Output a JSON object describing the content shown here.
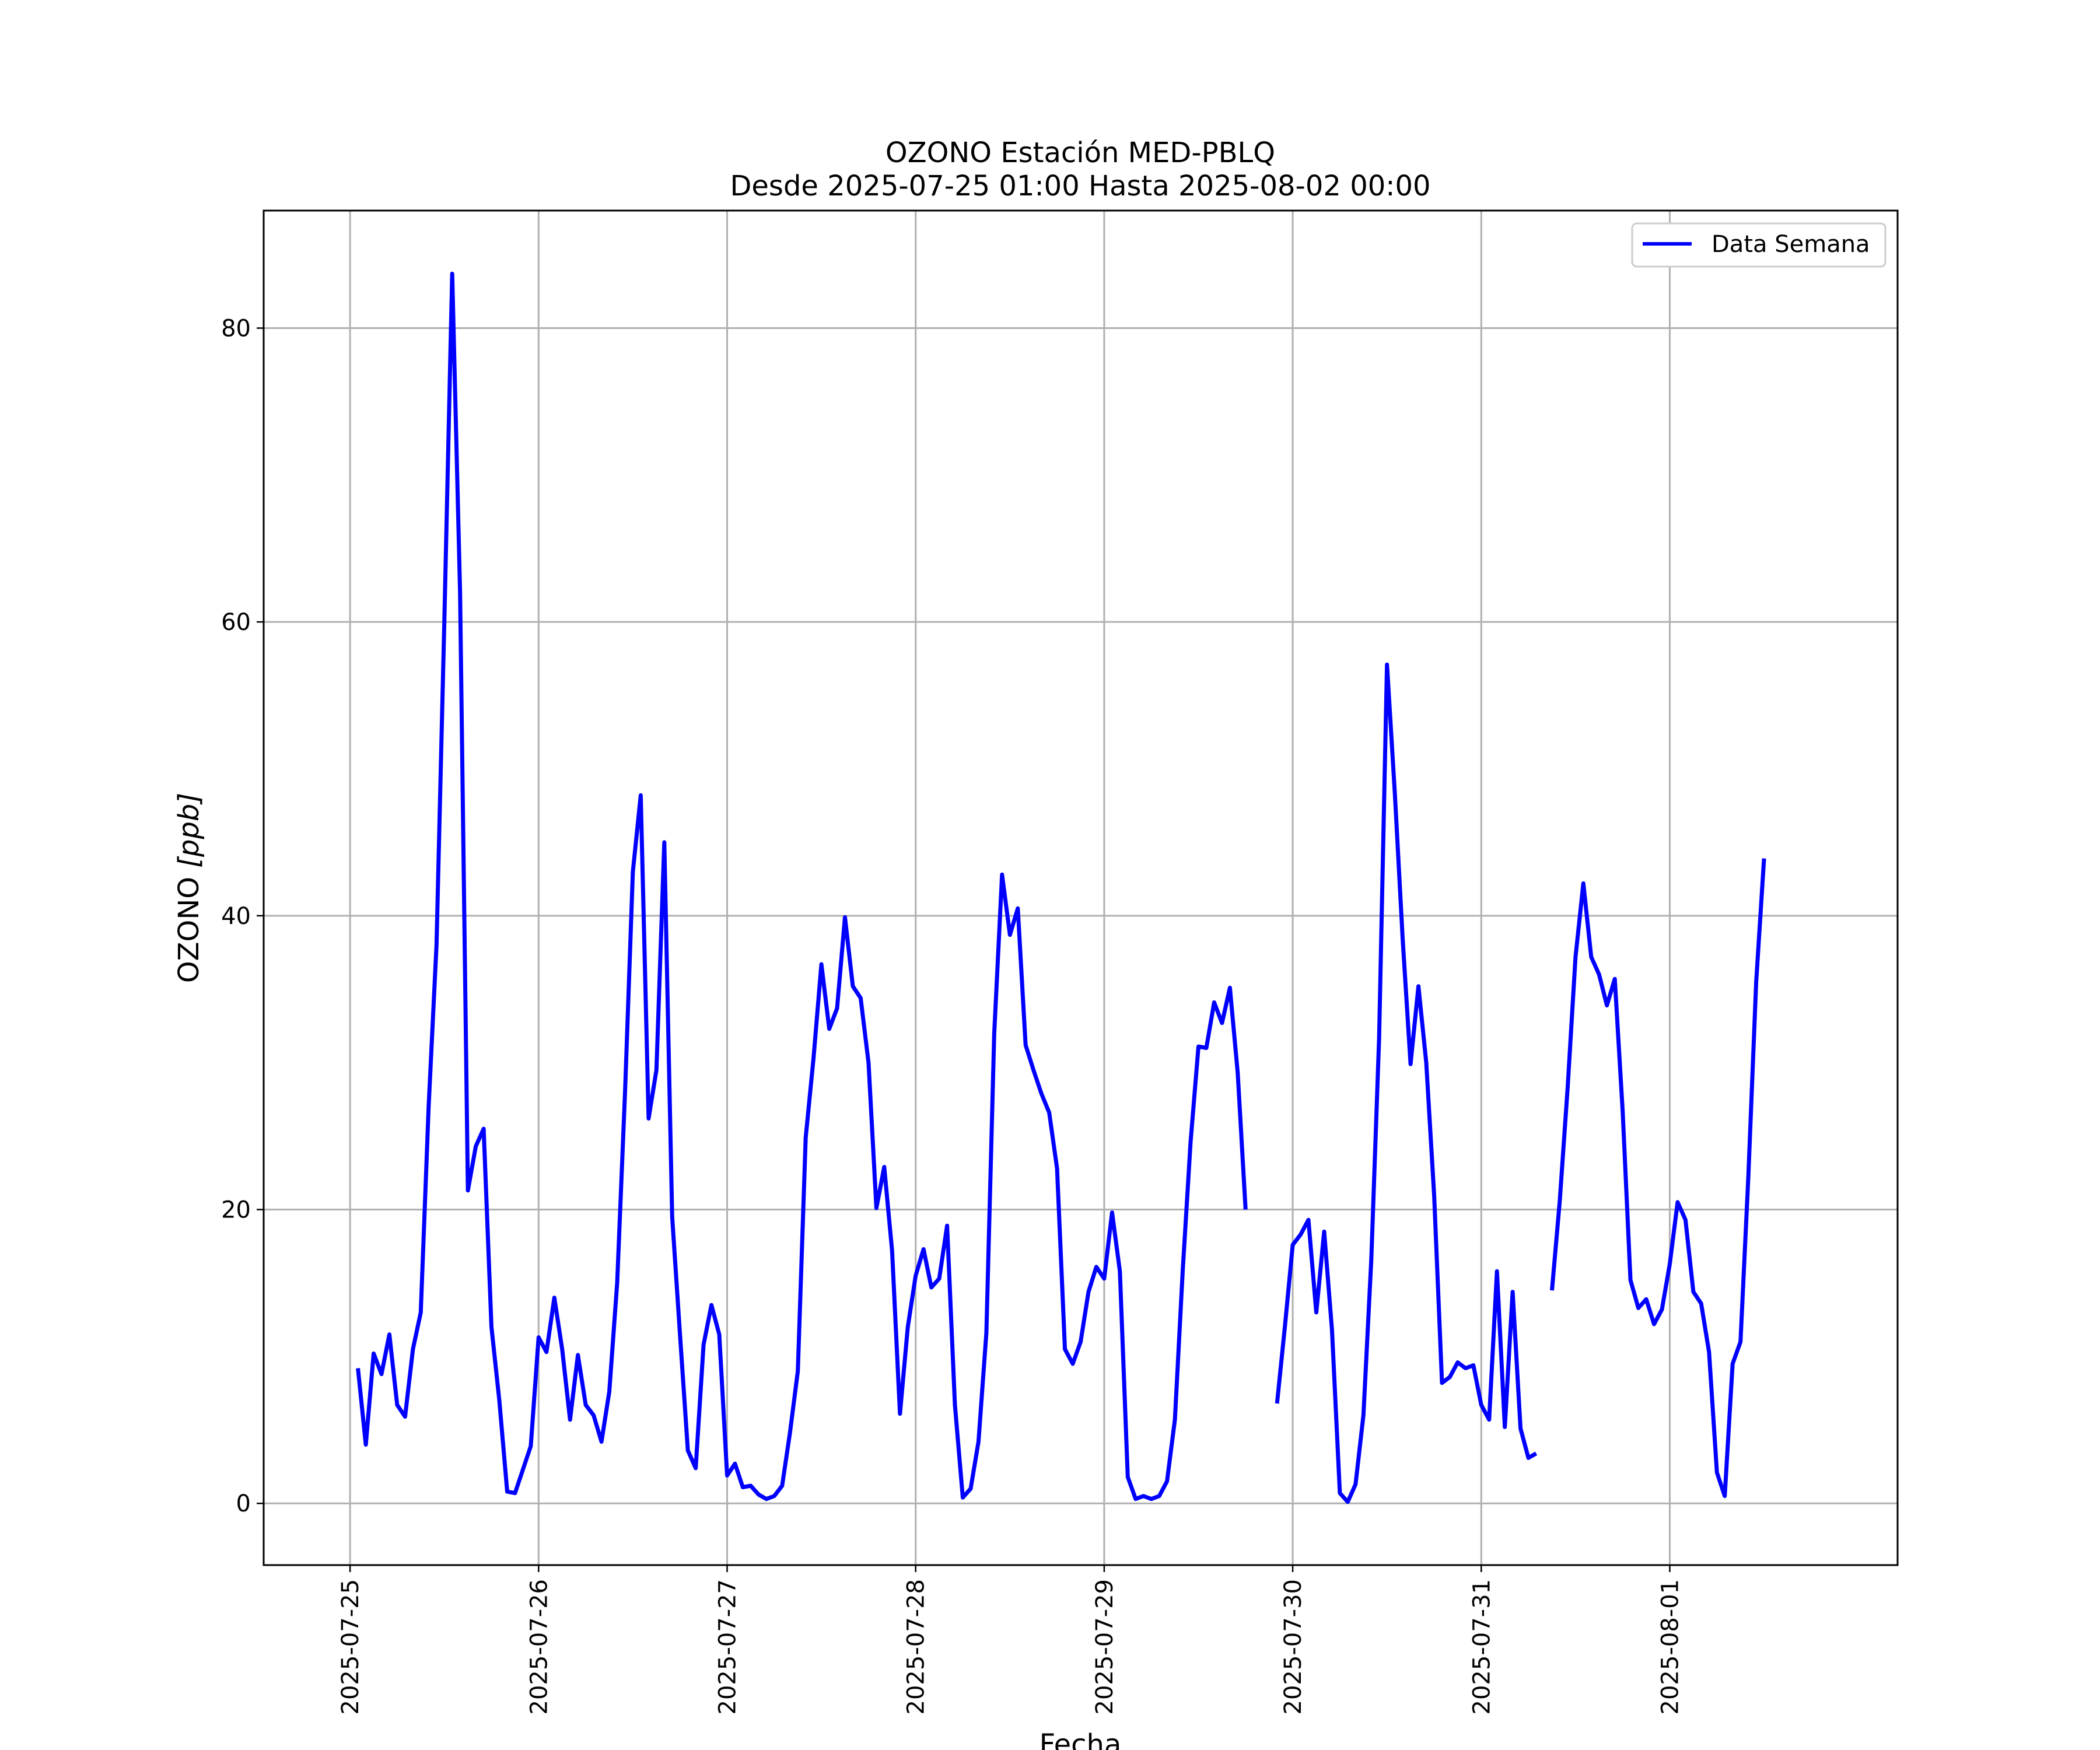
{
  "chart_data": {
    "type": "line",
    "title": "OZONO Estación MED-PBLQ",
    "subtitle": "Desde 2025-07-25 01:00 Hasta 2025-08-02 00:00",
    "xlabel": "Fecha",
    "ylabel_prefix": "OZONO ",
    "ylabel_unit": "[ppb]",
    "x_tick_labels": [
      "2025-07-25",
      "2025-07-26",
      "2025-07-27",
      "2025-07-28",
      "2025-07-29",
      "2025-07-30",
      "2025-07-31",
      "2025-08-01"
    ],
    "y_ticks": [
      0,
      20,
      40,
      60,
      80
    ],
    "ylim": [
      -4.2,
      88
    ],
    "xlim": [
      "2025-07-24 13:00",
      "2025-08-02 05:00"
    ],
    "grid": true,
    "legend_position": "top-right",
    "series": [
      {
        "name": "Data Semana",
        "color": "#0000ff",
        "points": [
          [
            "2025-07-25 01:00",
            9.2
          ],
          [
            "2025-07-25 02:00",
            4.0
          ],
          [
            "2025-07-25 03:00",
            10.2
          ],
          [
            "2025-07-25 04:00",
            8.8
          ],
          [
            "2025-07-25 05:00",
            11.5
          ],
          [
            "2025-07-25 06:00",
            6.7
          ],
          [
            "2025-07-25 07:00",
            5.9
          ],
          [
            "2025-07-25 08:00",
            10.5
          ],
          [
            "2025-07-25 09:00",
            13.0
          ],
          [
            "2025-07-25 10:00",
            27.0
          ],
          [
            "2025-07-25 11:00",
            38.0
          ],
          [
            "2025-07-25 12:00",
            60.0
          ],
          [
            "2025-07-25 13:00",
            83.7
          ],
          [
            "2025-07-25 14:00",
            62.0
          ],
          [
            "2025-07-25 15:00",
            21.3
          ],
          [
            "2025-07-25 16:00",
            24.3
          ],
          [
            "2025-07-25 17:00",
            25.5
          ],
          [
            "2025-07-25 18:00",
            12.0
          ],
          [
            "2025-07-25 19:00",
            7.0
          ],
          [
            "2025-07-25 20:00",
            0.8
          ],
          [
            "2025-07-25 21:00",
            0.7
          ],
          [
            "2025-07-25 22:00",
            2.3
          ],
          [
            "2025-07-25 23:00",
            3.9
          ],
          [
            "2025-07-26 00:00",
            11.3
          ],
          [
            "2025-07-26 01:00",
            10.3
          ],
          [
            "2025-07-26 02:00",
            14.0
          ],
          [
            "2025-07-26 03:00",
            10.5
          ],
          [
            "2025-07-26 04:00",
            5.7
          ],
          [
            "2025-07-26 05:00",
            10.1
          ],
          [
            "2025-07-26 06:00",
            6.7
          ],
          [
            "2025-07-26 07:00",
            6.0
          ],
          [
            "2025-07-26 08:00",
            4.2
          ],
          [
            "2025-07-26 09:00",
            7.6
          ],
          [
            "2025-07-26 10:00",
            15.0
          ],
          [
            "2025-07-26 11:00",
            28.0
          ],
          [
            "2025-07-26 12:00",
            43.0
          ],
          [
            "2025-07-26 13:00",
            48.2
          ],
          [
            "2025-07-26 14:00",
            26.2
          ],
          [
            "2025-07-26 15:00",
            29.5
          ],
          [
            "2025-07-26 16:00",
            45.0
          ],
          [
            "2025-07-26 17:00",
            19.5
          ],
          [
            "2025-07-26 18:00",
            11.5
          ],
          [
            "2025-07-26 19:00",
            3.6
          ],
          [
            "2025-07-26 20:00",
            2.4
          ],
          [
            "2025-07-26 21:00",
            10.8
          ],
          [
            "2025-07-26 22:00",
            13.5
          ],
          [
            "2025-07-26 23:00",
            11.5
          ],
          [
            "2025-07-27 00:00",
            1.9
          ],
          [
            "2025-07-27 01:00",
            2.7
          ],
          [
            "2025-07-27 02:00",
            1.1
          ],
          [
            "2025-07-27 03:00",
            1.2
          ],
          [
            "2025-07-27 04:00",
            0.6
          ],
          [
            "2025-07-27 05:00",
            0.3
          ],
          [
            "2025-07-27 06:00",
            0.5
          ],
          [
            "2025-07-27 07:00",
            1.2
          ],
          [
            "2025-07-27 08:00",
            4.8
          ],
          [
            "2025-07-27 09:00",
            9.0
          ],
          [
            "2025-07-27 10:00",
            24.9
          ],
          [
            "2025-07-27 11:00",
            30.3
          ],
          [
            "2025-07-27 12:00",
            36.7
          ],
          [
            "2025-07-27 13:00",
            32.3
          ],
          [
            "2025-07-27 14:00",
            33.7
          ],
          [
            "2025-07-27 15:00",
            39.9
          ],
          [
            "2025-07-27 16:00",
            35.2
          ],
          [
            "2025-07-27 17:00",
            34.4
          ],
          [
            "2025-07-27 18:00",
            30.0
          ],
          [
            "2025-07-27 19:00",
            20.1
          ],
          [
            "2025-07-27 20:00",
            22.9
          ],
          [
            "2025-07-27 21:00",
            17.2
          ],
          [
            "2025-07-27 22:00",
            6.1
          ],
          [
            "2025-07-27 23:00",
            12.0
          ],
          [
            "2025-07-28 00:00",
            15.5
          ],
          [
            "2025-07-28 01:00",
            17.3
          ],
          [
            "2025-07-28 02:00",
            14.7
          ],
          [
            "2025-07-28 03:00",
            15.3
          ],
          [
            "2025-07-28 04:00",
            18.9
          ],
          [
            "2025-07-28 05:00",
            6.7
          ],
          [
            "2025-07-28 06:00",
            0.4
          ],
          [
            "2025-07-28 07:00",
            1.0
          ],
          [
            "2025-07-28 08:00",
            4.2
          ],
          [
            "2025-07-28 09:00",
            11.6
          ],
          [
            "2025-07-28 10:00",
            32.0
          ],
          [
            "2025-07-28 11:00",
            42.8
          ],
          [
            "2025-07-28 12:00",
            38.7
          ],
          [
            "2025-07-28 13:00",
            40.5
          ],
          [
            "2025-07-28 14:00",
            31.2
          ],
          [
            "2025-07-28 15:00",
            29.5
          ],
          [
            "2025-07-28 16:00",
            27.9
          ],
          [
            "2025-07-28 17:00",
            26.6
          ],
          [
            "2025-07-28 18:00",
            22.8
          ],
          [
            "2025-07-28 19:00",
            10.5
          ],
          [
            "2025-07-28 20:00",
            9.5
          ],
          [
            "2025-07-28 21:00",
            11.0
          ],
          [
            "2025-07-28 22:00",
            14.4
          ],
          [
            "2025-07-28 23:00",
            16.1
          ],
          [
            "2025-07-29 00:00",
            15.3
          ],
          [
            "2025-07-29 01:00",
            19.8
          ],
          [
            "2025-07-29 02:00",
            15.8
          ],
          [
            "2025-07-29 03:00",
            1.8
          ],
          [
            "2025-07-29 04:00",
            0.3
          ],
          [
            "2025-07-29 05:00",
            0.5
          ],
          [
            "2025-07-29 06:00",
            0.3
          ],
          [
            "2025-07-29 07:00",
            0.5
          ],
          [
            "2025-07-29 08:00",
            1.5
          ],
          [
            "2025-07-29 09:00",
            5.7
          ],
          [
            "2025-07-29 10:00",
            15.9
          ],
          [
            "2025-07-29 11:00",
            24.6
          ],
          [
            "2025-07-29 12:00",
            31.1
          ],
          [
            "2025-07-29 13:00",
            31.0
          ],
          [
            "2025-07-29 14:00",
            34.1
          ],
          [
            "2025-07-29 15:00",
            32.7
          ],
          [
            "2025-07-29 16:00",
            35.1
          ],
          [
            "2025-07-29 17:00",
            29.3
          ],
          [
            "2025-07-29 18:00",
            20.0
          ],
          null,
          [
            "2025-07-29 22:00",
            6.8
          ],
          [
            "2025-07-29 23:00",
            12.0
          ],
          [
            "2025-07-30 00:00",
            17.6
          ],
          [
            "2025-07-30 01:00",
            18.3
          ],
          [
            "2025-07-30 02:00",
            19.3
          ],
          [
            "2025-07-30 03:00",
            13.0
          ],
          [
            "2025-07-30 04:00",
            18.5
          ],
          [
            "2025-07-30 05:00",
            11.8
          ],
          [
            "2025-07-30 06:00",
            0.7
          ],
          [
            "2025-07-30 07:00",
            0.1
          ],
          [
            "2025-07-30 08:00",
            1.3
          ],
          [
            "2025-07-30 09:00",
            6.0
          ],
          [
            "2025-07-30 10:00",
            16.6
          ],
          [
            "2025-07-30 11:00",
            31.7
          ],
          [
            "2025-07-30 12:00",
            57.1
          ],
          [
            "2025-07-30 13:00",
            48.3
          ],
          [
            "2025-07-30 14:00",
            38.4
          ],
          [
            "2025-07-30 15:00",
            29.9
          ],
          [
            "2025-07-30 16:00",
            35.2
          ],
          [
            "2025-07-30 17:00",
            30.0
          ],
          [
            "2025-07-30 18:00",
            21.0
          ],
          [
            "2025-07-30 19:00",
            8.2
          ],
          [
            "2025-07-30 20:00",
            8.6
          ],
          [
            "2025-07-30 21:00",
            9.6
          ],
          [
            "2025-07-30 22:00",
            9.2
          ],
          [
            "2025-07-30 23:00",
            9.4
          ],
          [
            "2025-07-31 00:00",
            6.7
          ],
          [
            "2025-07-31 01:00",
            5.7
          ],
          [
            "2025-07-31 02:00",
            15.8
          ],
          [
            "2025-07-31 03:00",
            5.2
          ],
          [
            "2025-07-31 04:00",
            14.4
          ],
          [
            "2025-07-31 05:00",
            5.1
          ],
          [
            "2025-07-31 06:00",
            3.1
          ],
          [
            "2025-07-31 07:00",
            3.4
          ],
          null,
          [
            "2025-07-31 09:00",
            14.5
          ],
          [
            "2025-07-31 10:00",
            20.6
          ],
          [
            "2025-07-31 11:00",
            28.3
          ],
          [
            "2025-07-31 12:00",
            37.2
          ],
          [
            "2025-07-31 13:00",
            42.2
          ],
          [
            "2025-07-31 14:00",
            37.2
          ],
          [
            "2025-07-31 15:00",
            36.0
          ],
          [
            "2025-07-31 16:00",
            33.9
          ],
          [
            "2025-07-31 17:00",
            35.7
          ],
          [
            "2025-07-31 18:00",
            26.7
          ],
          [
            "2025-07-31 19:00",
            15.2
          ],
          [
            "2025-07-31 20:00",
            13.3
          ],
          [
            "2025-07-31 21:00",
            13.9
          ],
          [
            "2025-07-31 22:00",
            12.2
          ],
          [
            "2025-07-31 23:00",
            13.2
          ],
          [
            "2025-08-01 00:00",
            16.3
          ],
          [
            "2025-08-01 01:00",
            20.5
          ],
          [
            "2025-08-01 02:00",
            19.3
          ],
          [
            "2025-08-01 03:00",
            14.4
          ],
          [
            "2025-08-01 04:00",
            13.6
          ],
          [
            "2025-08-01 05:00",
            10.3
          ],
          [
            "2025-08-01 06:00",
            2.1
          ],
          [
            "2025-08-01 07:00",
            0.5
          ],
          [
            "2025-08-01 08:00",
            9.5
          ],
          [
            "2025-08-01 09:00",
            11.0
          ],
          [
            "2025-08-01 10:00",
            22.2
          ],
          [
            "2025-08-01 11:00",
            35.5
          ],
          [
            "2025-08-01 12:00",
            43.9
          ]
        ]
      }
    ]
  }
}
